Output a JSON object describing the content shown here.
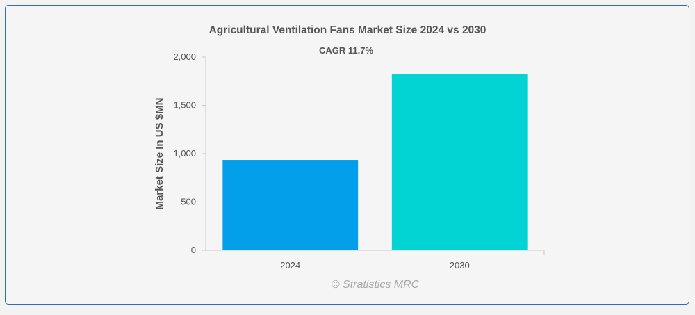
{
  "chart_data": {
    "type": "bar",
    "title": "Agricultural Ventilation Fans Market Size 2024 vs 2030",
    "subtitle": "CAGR 11.7%",
    "xlabel": "",
    "ylabel": "Market Size In US $MN",
    "categories": [
      "2024",
      "2030"
    ],
    "values": [
      935,
      1820
    ],
    "colors": [
      "#039fea",
      "#02d3d3"
    ],
    "ylim": [
      0,
      2000
    ],
    "yticks": [
      0,
      500,
      1000,
      1500,
      2000
    ],
    "ytick_labels": [
      "0",
      "500",
      "1,000",
      "1,500",
      "2,000"
    ],
    "grid": false,
    "legend": "none"
  },
  "watermark": "© Stratistics MRC"
}
